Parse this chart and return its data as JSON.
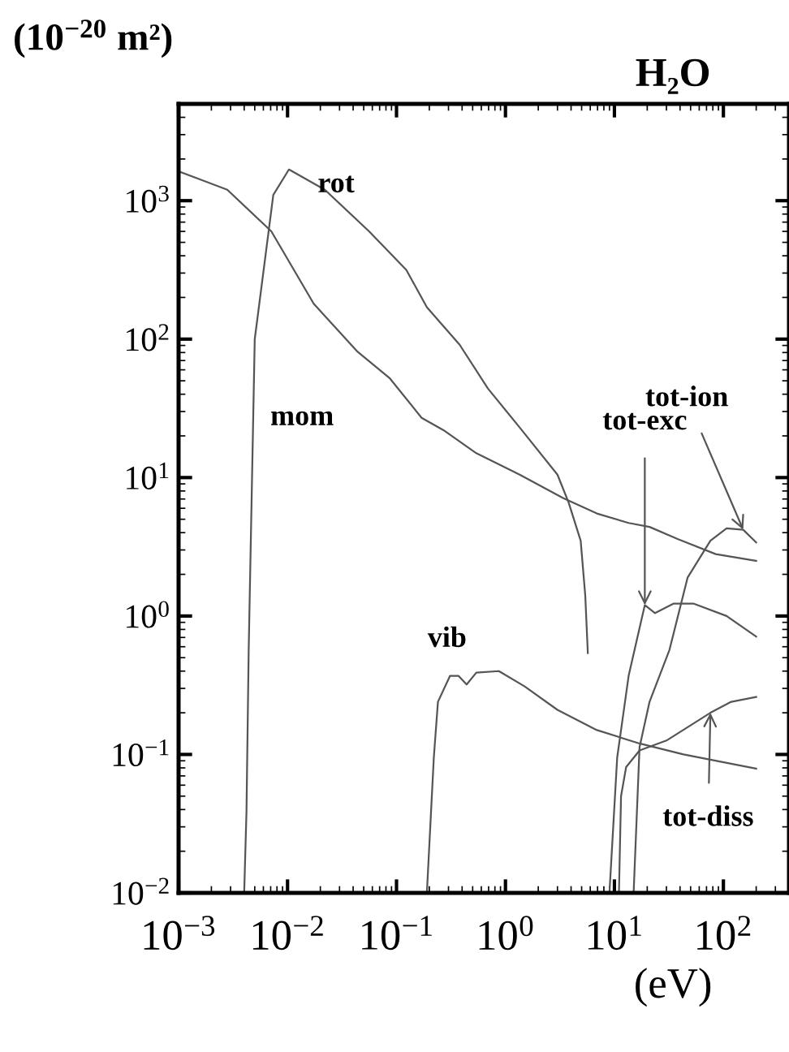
{
  "chart_data": {
    "type": "line",
    "title": "H₂O",
    "xlabel": "(eV)",
    "ylabel": "(10$^{−20}$ m²)",
    "log": "xy",
    "grid": false,
    "legend": false,
    "marker": "none",
    "line_style": "solid",
    "xlim": [
      0.001,
      400
    ],
    "ylim": [
      0.01,
      5000
    ],
    "xticks": [
      {
        "value": 0.001,
        "label": "10$^{−3}$"
      },
      {
        "value": 0.01,
        "label": "10$^{−2}$"
      },
      {
        "value": 0.1,
        "label": "10$^{−1}$"
      },
      {
        "value": 1,
        "label": "10$^{0}$"
      },
      {
        "value": 10,
        "label": "10$^{1}$"
      },
      {
        "value": 100,
        "label": "10$^{2}$"
      }
    ],
    "yticks": [
      {
        "value": 0.01,
        "label": "10$^{−2}$"
      },
      {
        "value": 0.1,
        "label": "10$^{−1}$"
      },
      {
        "value": 1,
        "label": "10$^{0}$"
      },
      {
        "value": 10,
        "label": "10$^{1}$"
      },
      {
        "value": 100,
        "label": "10$^{2}$"
      },
      {
        "value": 1000,
        "label": "10$^{3}$"
      }
    ],
    "series": [
      {
        "color": "#555555",
        "x": [
          0.001,
          0.0028,
          0.0071,
          0.0174,
          0.044,
          0.087,
          0.17,
          0.27,
          0.54,
          1.35,
          3.4,
          6.9,
          13.5,
          21,
          38,
          85,
          200
        ],
        "values": [
          1630,
          1200,
          600,
          180,
          81,
          52,
          27,
          22,
          15,
          10.5,
          7.1,
          5.5,
          4.7,
          4.4,
          3.6,
          2.8,
          2.5
        ]
      },
      {
        "color": "#555555",
        "x": [
          0.004,
          0.0042,
          0.0044,
          0.005,
          0.0074,
          0.0103,
          0.022,
          0.056,
          0.123,
          0.19,
          0.38,
          0.69,
          1.35,
          3.0,
          3.8,
          4.9,
          5.4,
          5.7
        ],
        "values": [
          0.01,
          0.039,
          0.57,
          100,
          1100,
          1680,
          1200,
          600,
          316,
          170,
          91,
          44,
          23,
          10.5,
          6.6,
          3.5,
          1.4,
          0.54
        ]
      },
      {
        "color": "#555555",
        "x": [
          0.19,
          0.22,
          0.24,
          0.31,
          0.37,
          0.44,
          0.54,
          0.87,
          1.5,
          3.0,
          6.9,
          17,
          43,
          200
        ],
        "values": [
          0.01,
          0.095,
          0.24,
          0.37,
          0.37,
          0.32,
          0.39,
          0.4,
          0.31,
          0.21,
          0.15,
          0.12,
          0.1,
          0.079
        ]
      },
      {
        "color": "#555555",
        "x": [
          9.0,
          10.6,
          13.5,
          19,
          23.6,
          35,
          53,
          107,
          200
        ],
        "values": [
          0.01,
          0.095,
          0.37,
          1.2,
          1.05,
          1.23,
          1.23,
          1.0,
          0.71
        ]
      },
      {
        "color": "#555555",
        "x": [
          15,
          17,
          21,
          32,
          47,
          76,
          107,
          152,
          200
        ],
        "values": [
          0.01,
          0.113,
          0.24,
          0.57,
          1.9,
          3.5,
          4.3,
          4.2,
          3.4
        ]
      },
      {
        "color": "#555555",
        "x": [
          11,
          11.5,
          12.8,
          17,
          30,
          76,
          118,
          200
        ],
        "values": [
          0.01,
          0.05,
          0.081,
          0.107,
          0.126,
          0.2,
          0.24,
          0.26
        ]
      }
    ],
    "annotations": [
      {
        "text": "rot",
        "x": 0.022,
        "y": 1200
      },
      {
        "text": "mom",
        "x": 0.005,
        "y": 100
      },
      {
        "text": "vib",
        "x": 0.37,
        "y": 0.37
      },
      {
        "text": "tot-exc",
        "x": 19,
        "y": 1.2
      },
      {
        "text": "tot-ion",
        "x": 152,
        "y": 4.2
      },
      {
        "text": "tot-diss",
        "x": 76,
        "y": 0.2
      }
    ]
  }
}
